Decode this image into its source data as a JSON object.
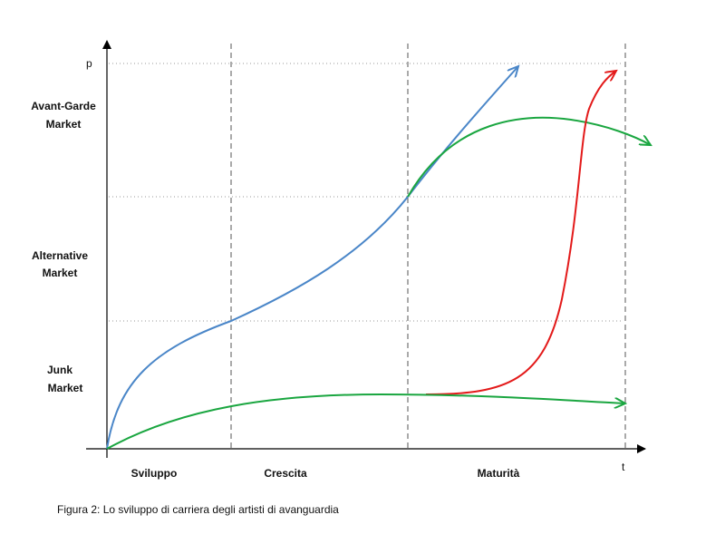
{
  "axes": {
    "y_label": "p",
    "x_label": "t"
  },
  "markets": [
    {
      "lines": [
        "Avant-Garde",
        "Market"
      ]
    },
    {
      "lines": [
        "Alternative",
        "Market"
      ]
    },
    {
      "lines": [
        "Junk",
        "Market"
      ]
    }
  ],
  "phases": [
    "Sviluppo",
    "Crescita",
    "Maturità"
  ],
  "caption": "Figura 2: Lo sviluppo di carriera degli artisti di avanguardia"
}
